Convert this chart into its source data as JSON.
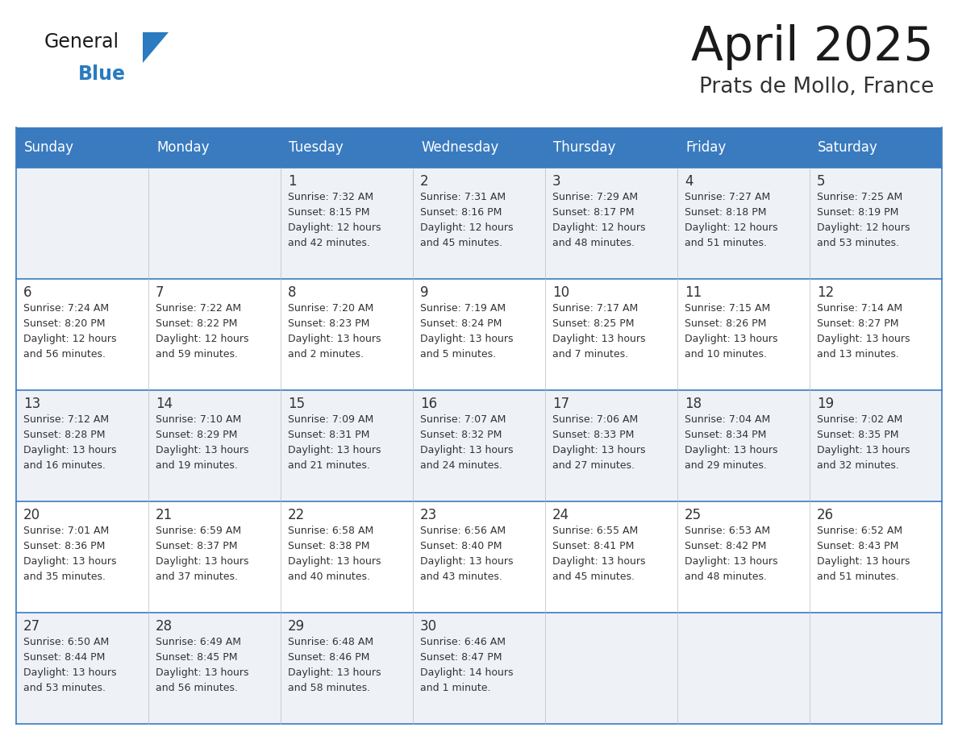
{
  "title": "April 2025",
  "subtitle": "Prats de Mollo, France",
  "days_of_week": [
    "Sunday",
    "Monday",
    "Tuesday",
    "Wednesday",
    "Thursday",
    "Friday",
    "Saturday"
  ],
  "header_bg": "#3a7bbf",
  "header_text": "#ffffff",
  "row_bg_odd": "#eef2f7",
  "row_bg_even": "#ffffff",
  "cell_border_color": "#3a7bbf",
  "row_line_color": "#3a7bbf",
  "text_color": "#333333",
  "title_color": "#1a1a1a",
  "subtitle_color": "#333333",
  "logo_general_color": "#1a1a1a",
  "logo_blue_color": "#2a7bbf",
  "weeks": [
    {
      "days": [
        {
          "date": "",
          "sunrise": "",
          "sunset": "",
          "daylight": ""
        },
        {
          "date": "",
          "sunrise": "",
          "sunset": "",
          "daylight": ""
        },
        {
          "date": "1",
          "sunrise": "Sunrise: 7:32 AM",
          "sunset": "Sunset: 8:15 PM",
          "daylight": "Daylight: 12 hours\nand 42 minutes."
        },
        {
          "date": "2",
          "sunrise": "Sunrise: 7:31 AM",
          "sunset": "Sunset: 8:16 PM",
          "daylight": "Daylight: 12 hours\nand 45 minutes."
        },
        {
          "date": "3",
          "sunrise": "Sunrise: 7:29 AM",
          "sunset": "Sunset: 8:17 PM",
          "daylight": "Daylight: 12 hours\nand 48 minutes."
        },
        {
          "date": "4",
          "sunrise": "Sunrise: 7:27 AM",
          "sunset": "Sunset: 8:18 PM",
          "daylight": "Daylight: 12 hours\nand 51 minutes."
        },
        {
          "date": "5",
          "sunrise": "Sunrise: 7:25 AM",
          "sunset": "Sunset: 8:19 PM",
          "daylight": "Daylight: 12 hours\nand 53 minutes."
        }
      ]
    },
    {
      "days": [
        {
          "date": "6",
          "sunrise": "Sunrise: 7:24 AM",
          "sunset": "Sunset: 8:20 PM",
          "daylight": "Daylight: 12 hours\nand 56 minutes."
        },
        {
          "date": "7",
          "sunrise": "Sunrise: 7:22 AM",
          "sunset": "Sunset: 8:22 PM",
          "daylight": "Daylight: 12 hours\nand 59 minutes."
        },
        {
          "date": "8",
          "sunrise": "Sunrise: 7:20 AM",
          "sunset": "Sunset: 8:23 PM",
          "daylight": "Daylight: 13 hours\nand 2 minutes."
        },
        {
          "date": "9",
          "sunrise": "Sunrise: 7:19 AM",
          "sunset": "Sunset: 8:24 PM",
          "daylight": "Daylight: 13 hours\nand 5 minutes."
        },
        {
          "date": "10",
          "sunrise": "Sunrise: 7:17 AM",
          "sunset": "Sunset: 8:25 PM",
          "daylight": "Daylight: 13 hours\nand 7 minutes."
        },
        {
          "date": "11",
          "sunrise": "Sunrise: 7:15 AM",
          "sunset": "Sunset: 8:26 PM",
          "daylight": "Daylight: 13 hours\nand 10 minutes."
        },
        {
          "date": "12",
          "sunrise": "Sunrise: 7:14 AM",
          "sunset": "Sunset: 8:27 PM",
          "daylight": "Daylight: 13 hours\nand 13 minutes."
        }
      ]
    },
    {
      "days": [
        {
          "date": "13",
          "sunrise": "Sunrise: 7:12 AM",
          "sunset": "Sunset: 8:28 PM",
          "daylight": "Daylight: 13 hours\nand 16 minutes."
        },
        {
          "date": "14",
          "sunrise": "Sunrise: 7:10 AM",
          "sunset": "Sunset: 8:29 PM",
          "daylight": "Daylight: 13 hours\nand 19 minutes."
        },
        {
          "date": "15",
          "sunrise": "Sunrise: 7:09 AM",
          "sunset": "Sunset: 8:31 PM",
          "daylight": "Daylight: 13 hours\nand 21 minutes."
        },
        {
          "date": "16",
          "sunrise": "Sunrise: 7:07 AM",
          "sunset": "Sunset: 8:32 PM",
          "daylight": "Daylight: 13 hours\nand 24 minutes."
        },
        {
          "date": "17",
          "sunrise": "Sunrise: 7:06 AM",
          "sunset": "Sunset: 8:33 PM",
          "daylight": "Daylight: 13 hours\nand 27 minutes."
        },
        {
          "date": "18",
          "sunrise": "Sunrise: 7:04 AM",
          "sunset": "Sunset: 8:34 PM",
          "daylight": "Daylight: 13 hours\nand 29 minutes."
        },
        {
          "date": "19",
          "sunrise": "Sunrise: 7:02 AM",
          "sunset": "Sunset: 8:35 PM",
          "daylight": "Daylight: 13 hours\nand 32 minutes."
        }
      ]
    },
    {
      "days": [
        {
          "date": "20",
          "sunrise": "Sunrise: 7:01 AM",
          "sunset": "Sunset: 8:36 PM",
          "daylight": "Daylight: 13 hours\nand 35 minutes."
        },
        {
          "date": "21",
          "sunrise": "Sunrise: 6:59 AM",
          "sunset": "Sunset: 8:37 PM",
          "daylight": "Daylight: 13 hours\nand 37 minutes."
        },
        {
          "date": "22",
          "sunrise": "Sunrise: 6:58 AM",
          "sunset": "Sunset: 8:38 PM",
          "daylight": "Daylight: 13 hours\nand 40 minutes."
        },
        {
          "date": "23",
          "sunrise": "Sunrise: 6:56 AM",
          "sunset": "Sunset: 8:40 PM",
          "daylight": "Daylight: 13 hours\nand 43 minutes."
        },
        {
          "date": "24",
          "sunrise": "Sunrise: 6:55 AM",
          "sunset": "Sunset: 8:41 PM",
          "daylight": "Daylight: 13 hours\nand 45 minutes."
        },
        {
          "date": "25",
          "sunrise": "Sunrise: 6:53 AM",
          "sunset": "Sunset: 8:42 PM",
          "daylight": "Daylight: 13 hours\nand 48 minutes."
        },
        {
          "date": "26",
          "sunrise": "Sunrise: 6:52 AM",
          "sunset": "Sunset: 8:43 PM",
          "daylight": "Daylight: 13 hours\nand 51 minutes."
        }
      ]
    },
    {
      "days": [
        {
          "date": "27",
          "sunrise": "Sunrise: 6:50 AM",
          "sunset": "Sunset: 8:44 PM",
          "daylight": "Daylight: 13 hours\nand 53 minutes."
        },
        {
          "date": "28",
          "sunrise": "Sunrise: 6:49 AM",
          "sunset": "Sunset: 8:45 PM",
          "daylight": "Daylight: 13 hours\nand 56 minutes."
        },
        {
          "date": "29",
          "sunrise": "Sunrise: 6:48 AM",
          "sunset": "Sunset: 8:46 PM",
          "daylight": "Daylight: 13 hours\nand 58 minutes."
        },
        {
          "date": "30",
          "sunrise": "Sunrise: 6:46 AM",
          "sunset": "Sunset: 8:47 PM",
          "daylight": "Daylight: 14 hours\nand 1 minute."
        },
        {
          "date": "",
          "sunrise": "",
          "sunset": "",
          "daylight": ""
        },
        {
          "date": "",
          "sunrise": "",
          "sunset": "",
          "daylight": ""
        },
        {
          "date": "",
          "sunrise": "",
          "sunset": "",
          "daylight": ""
        }
      ]
    }
  ]
}
